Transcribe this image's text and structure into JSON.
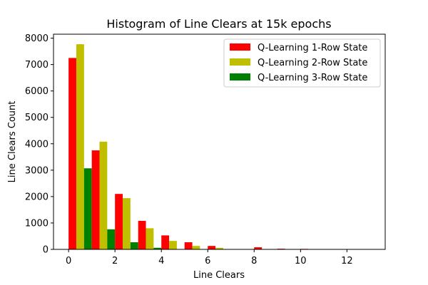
{
  "chart_data": {
    "type": "bar",
    "title": "Histogram of Line Clears at 15k epochs",
    "xlabel": "Line Clears",
    "ylabel": "Line Clears Count",
    "xlim": [
      -0.65,
      13.65
    ],
    "ylim": [
      0,
      8150
    ],
    "xticks": [
      0,
      2,
      4,
      6,
      8,
      10,
      12
    ],
    "yticks": [
      0,
      1000,
      2000,
      3000,
      4000,
      5000,
      6000,
      7000,
      8000
    ],
    "bin_width": 1,
    "legend_position": "top-right",
    "categories": [
      0,
      1,
      2,
      3,
      4,
      5,
      6,
      7,
      8,
      9,
      10,
      11,
      12
    ],
    "series": [
      {
        "name": "Q-Learning 1-Row State",
        "color": "#ff0000",
        "values": [
          7250,
          3750,
          2100,
          1080,
          530,
          270,
          130,
          0,
          80,
          25,
          20,
          0,
          0
        ]
      },
      {
        "name": "Q-Learning 2-Row State",
        "color": "#bfbf00",
        "values": [
          7770,
          4080,
          1940,
          800,
          320,
          130,
          60,
          0,
          15,
          10,
          0,
          0,
          0
        ]
      },
      {
        "name": "Q-Learning 3-Row State",
        "color": "#008000",
        "values": [
          3070,
          760,
          270,
          60,
          0,
          0,
          0,
          0,
          0,
          0,
          0,
          0,
          0
        ]
      }
    ]
  }
}
